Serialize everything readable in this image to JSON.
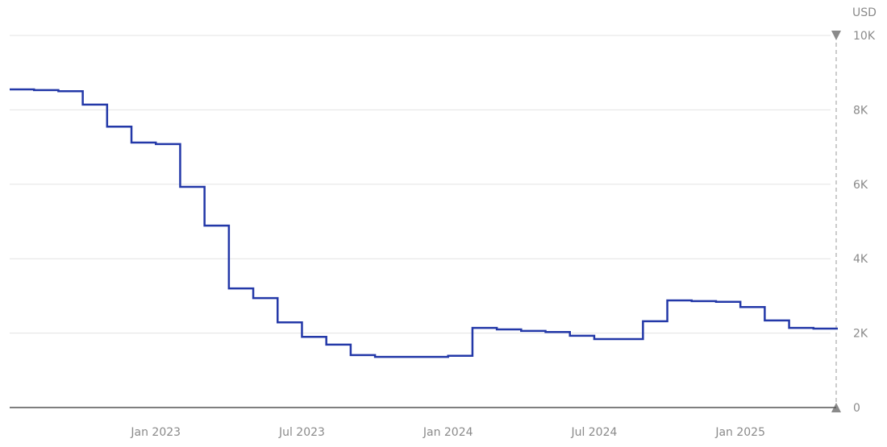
{
  "chart_data": {
    "type": "step-line",
    "unit": "USD",
    "x": [
      "2022-07",
      "2022-08",
      "2022-09",
      "2022-10",
      "2022-11",
      "2022-12",
      "2023-01",
      "2023-02",
      "2023-03",
      "2023-04",
      "2023-05",
      "2023-06",
      "2023-07",
      "2023-08",
      "2023-09",
      "2023-10",
      "2023-11",
      "2023-12",
      "2024-01",
      "2024-02",
      "2024-03",
      "2024-04",
      "2024-05",
      "2024-06",
      "2024-07",
      "2024-08",
      "2024-09",
      "2024-10",
      "2024-11",
      "2024-12",
      "2025-01",
      "2025-02",
      "2025-03",
      "2025-04"
    ],
    "series": [
      {
        "color": "#2338a8",
        "values": [
          8550,
          8530,
          8500,
          8140,
          7550,
          7120,
          7080,
          5930,
          4890,
          3200,
          2940,
          2290,
          1900,
          1690,
          1410,
          1360,
          1360,
          1360,
          1390,
          2140,
          2100,
          2060,
          2030,
          1930,
          1840,
          1840,
          2320,
          2880,
          2860,
          2840,
          2700,
          2340,
          2140,
          2120
        ]
      }
    ],
    "xticks": [
      {
        "value": "2023-01",
        "label": "Jan 2023"
      },
      {
        "value": "2023-07",
        "label": "Jul 2023"
      },
      {
        "value": "2024-01",
        "label": "Jan 2024"
      },
      {
        "value": "2024-07",
        "label": "Jul 2024"
      },
      {
        "value": "2025-01",
        "label": "Jan 2025"
      }
    ],
    "ylim": [
      0,
      10000
    ],
    "yticks": [
      0,
      {
        "value": 2000,
        "label": "2K"
      },
      {
        "value": 4000,
        "label": "4K"
      },
      {
        "value": 6000,
        "label": "6K"
      },
      {
        "value": 8000,
        "label": "8K"
      },
      {
        "value": 10000,
        "label": "10K"
      }
    ],
    "grid": true
  }
}
